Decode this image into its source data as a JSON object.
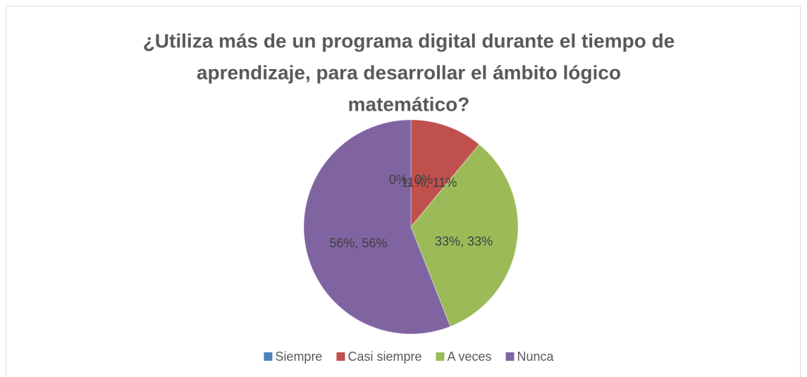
{
  "chart_data": {
    "type": "pie",
    "title": [
      "¿Utiliza más de un programa digital durante el tiempo de",
      "aprendizaje, para desarrollar el ámbito lógico",
      "matemático?"
    ],
    "categories": [
      "Siempre",
      "Casi siempre",
      "A veces",
      "Nunca"
    ],
    "values": [
      0,
      11,
      33,
      56
    ],
    "value_labels": [
      "0%, 0%",
      "11%, 11%",
      "33%, 33%",
      "56%, 56%"
    ],
    "colors": [
      "#4f81bd",
      "#c0504d",
      "#9bbb59",
      "#8064a2"
    ],
    "legend": "bottom"
  }
}
